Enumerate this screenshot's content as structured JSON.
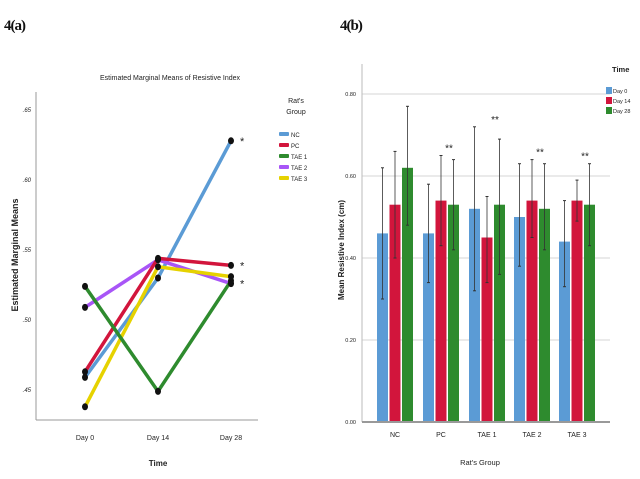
{
  "panels": {
    "a_label": "4(a)",
    "b_label": "4(b)"
  },
  "chart_data": [
    {
      "type": "line",
      "title": "Estimated Marginal Means of Resistive Index",
      "xlabel": "Time",
      "ylabel": "Estimated Marginal Means",
      "categories": [
        "Day 0",
        "Day 14",
        "Day 28"
      ],
      "yticks": [
        0.45,
        0.5,
        0.55,
        0.6,
        0.65
      ],
      "ytick_labels": [
        ".45",
        ".50",
        ".55",
        ".60",
        ".65"
      ],
      "ylim": [
        0.425,
        0.675
      ],
      "legend_title": "Rat's Group",
      "legend_position": "right",
      "series": [
        {
          "name": "NC",
          "color": "#5b9bd5",
          "values": [
            0.459,
            0.53,
            0.628
          ]
        },
        {
          "name": "PC",
          "color": "#d2153c",
          "values": [
            0.463,
            0.544,
            0.539
          ]
        },
        {
          "name": "TAE 1",
          "color": "#2e8b2e",
          "values": [
            0.524,
            0.449,
            0.528
          ]
        },
        {
          "name": "TAE 2",
          "color": "#a855f7",
          "values": [
            0.509,
            0.543,
            0.526
          ]
        },
        {
          "name": "TAE 3",
          "color": "#e6d200",
          "values": [
            0.438,
            0.538,
            0.531
          ]
        }
      ],
      "annotations": [
        {
          "text": "*",
          "series": "NC",
          "category": "Day 28"
        },
        {
          "text": "*",
          "series": "PC",
          "category": "Day 28"
        },
        {
          "text": "*",
          "series": "TAE 2",
          "category": "Day 28"
        }
      ]
    },
    {
      "type": "bar",
      "title": "",
      "xlabel": "Rat's Group",
      "ylabel": "Mean Resistive Index (cm)",
      "categories": [
        "NC",
        "PC",
        "TAE 1",
        "TAE 2",
        "TAE 3"
      ],
      "yticks": [
        0.0,
        0.2,
        0.4,
        0.6,
        0.8
      ],
      "ytick_labels": [
        "0.00",
        "0.20",
        "0.40",
        "0.60",
        "0.80"
      ],
      "ylim": [
        0,
        0.9
      ],
      "grid": true,
      "legend_title": "Time",
      "legend_position": "top-right",
      "series": [
        {
          "name": "Day 0",
          "color": "#5b9bd5",
          "values": [
            0.46,
            0.46,
            0.52,
            0.5,
            0.44
          ],
          "err_low": [
            0.3,
            0.34,
            0.32,
            0.38,
            0.33
          ],
          "err_high": [
            0.62,
            0.58,
            0.72,
            0.63,
            0.54
          ]
        },
        {
          "name": "Day 14",
          "color": "#d2153c",
          "values": [
            0.53,
            0.54,
            0.45,
            0.54,
            0.54
          ],
          "err_low": [
            0.4,
            0.43,
            0.34,
            0.45,
            0.49
          ],
          "err_high": [
            0.66,
            0.65,
            0.55,
            0.64,
            0.59
          ]
        },
        {
          "name": "Day 28",
          "color": "#2e8b2e",
          "values": [
            0.62,
            0.53,
            0.53,
            0.52,
            0.53
          ],
          "err_low": [
            0.48,
            0.42,
            0.36,
            0.42,
            0.43
          ],
          "err_high": [
            0.77,
            0.64,
            0.69,
            0.63,
            0.63
          ]
        }
      ],
      "annotations": [
        {
          "text": "**",
          "category": "PC"
        },
        {
          "text": "**",
          "category": "TAE 1"
        },
        {
          "text": "**",
          "category": "TAE 2"
        },
        {
          "text": "**",
          "category": "TAE 3"
        }
      ]
    }
  ]
}
